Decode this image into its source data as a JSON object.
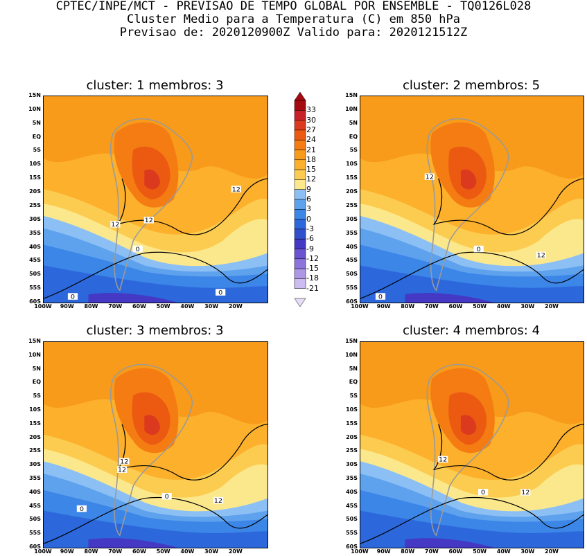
{
  "header": {
    "line1": "CPTEC/INPE/MCT - PREVISAO DE TEMPO GLOBAL POR ENSEMBLE - TQ0126L028",
    "line2": "Cluster Medio para a Temperatura (C) em 850 hPa",
    "line3": "Previsao de: 2020120900Z   Valido para: 2020121512Z"
  },
  "panels": [
    {
      "title": "cluster: 1  membros: 3",
      "contour_labels": [
        "12",
        "12",
        "12",
        "0",
        "0",
        "0"
      ]
    },
    {
      "title": "cluster: 2  membros: 5",
      "contour_labels": [
        "12",
        "0",
        "12",
        "0"
      ]
    },
    {
      "title": "cluster: 3  membros: 3",
      "contour_labels": [
        "12",
        "12",
        "0",
        "12",
        "0"
      ]
    },
    {
      "title": "cluster: 4  membros: 4",
      "contour_labels": [
        "12",
        "0",
        "12"
      ]
    }
  ],
  "axes": {
    "lat_labels": [
      "15N",
      "10N",
      "5N",
      "EQ",
      "5S",
      "10S",
      "15S",
      "20S",
      "25S",
      "30S",
      "35S",
      "40S",
      "45S",
      "50S",
      "55S",
      "60S"
    ],
    "lon_labels": [
      "100W",
      "90W",
      "80W",
      "70W",
      "60W",
      "50W",
      "40W",
      "30W",
      "20W"
    ]
  },
  "colorbar": {
    "labels": [
      "33",
      "30",
      "27",
      "24",
      "21",
      "18",
      "15",
      "12",
      "9",
      "6",
      "3",
      "0",
      "-3",
      "-6",
      "-9",
      "-12",
      "-15",
      "-18",
      "-21"
    ],
    "colors": [
      "#a50a10",
      "#c8212a",
      "#dc3a1e",
      "#ec5a12",
      "#f47c12",
      "#f89a1a",
      "#fcb02c",
      "#fccc50",
      "#fce88c",
      "#8cc0f4",
      "#5ea2ee",
      "#3c86e8",
      "#2c68dc",
      "#3250cc",
      "#4438c4",
      "#6a52d0",
      "#8c74dc",
      "#ae98e6",
      "#ccbcf0",
      "#e6ddf8"
    ]
  },
  "palette": {
    "cold_deep": "#2c68dc",
    "cold": "#3c86e8",
    "cool": "#5ea2ee",
    "mild": "#8cc0f4",
    "pale": "#fce88c",
    "warm_light": "#fccc50",
    "warm": "#fcb02c",
    "hot": "#f89a1a",
    "hotter": "#f47c12",
    "hottest": "#ec5a12",
    "peak": "#dc3a1e",
    "polar": "#4438c4"
  }
}
